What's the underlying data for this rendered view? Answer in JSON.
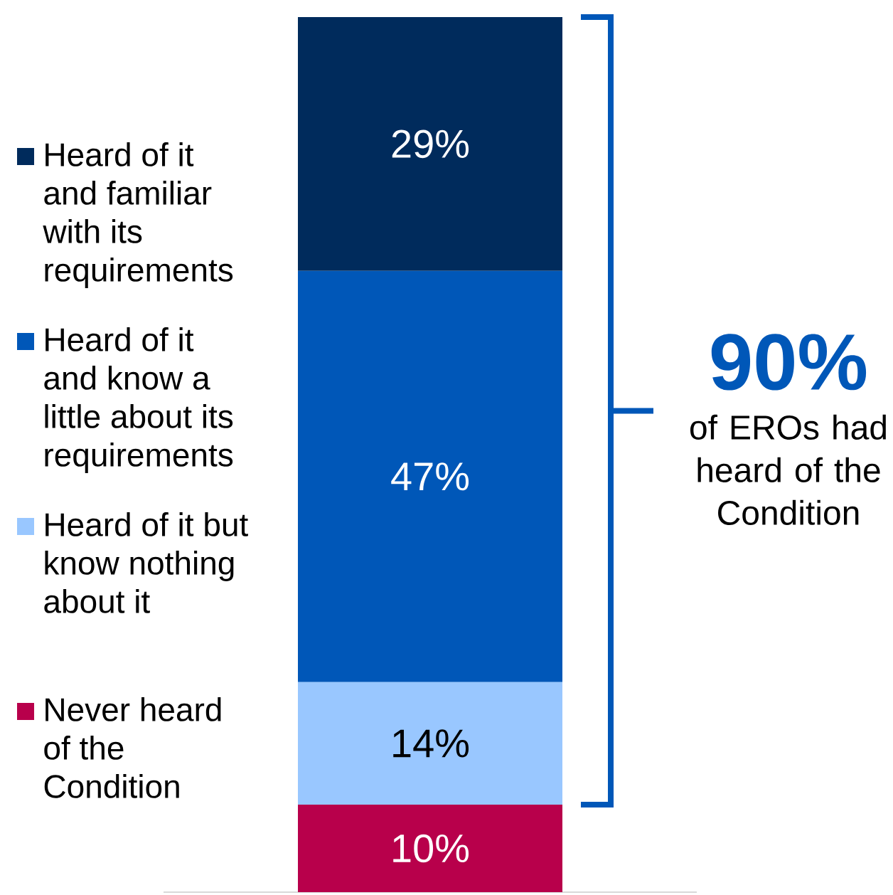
{
  "chart_data": {
    "type": "bar",
    "stacked": true,
    "categories": [
      null
    ],
    "series": [
      {
        "name": "Never heard of the Condition",
        "color": "#b8004b",
        "values": [
          10
        ],
        "value_labels": [
          "10%"
        ]
      },
      {
        "name": "Heard of it but know nothing about it",
        "color": "#99c7ff",
        "values": [
          14
        ],
        "value_labels": [
          "14%"
        ]
      },
      {
        "name": "Heard of it and know a little about its requirements",
        "color": "#0057b8",
        "values": [
          47
        ],
        "value_labels": [
          "47%"
        ]
      },
      {
        "name": "Heard of it and familiar with its requirements",
        "color": "#002b5c",
        "values": [
          29
        ],
        "value_labels": [
          "29%"
        ]
      }
    ],
    "legend": "left",
    "annotations": [
      "90%",
      "of EROs had heard of the Condition"
    ]
  }
}
